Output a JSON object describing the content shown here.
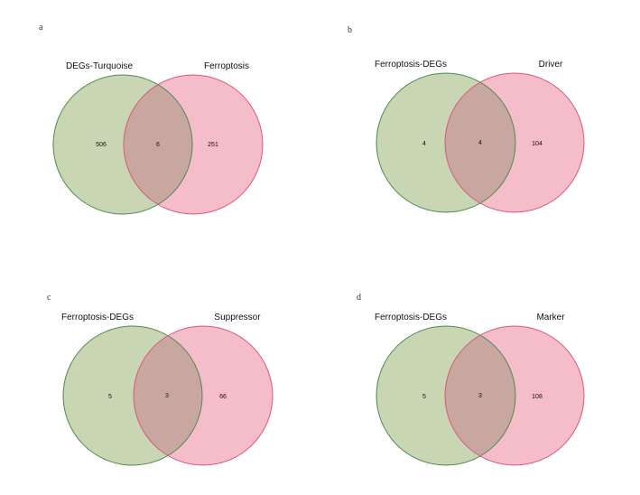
{
  "colors": {
    "left_fill": "#c9d6b4",
    "left_stroke": "#4d8a4d",
    "right_fill": "#f5bcc9",
    "right_stroke": "#d8587a",
    "overlap_fill": "#c8a7a1"
  },
  "panels": [
    {
      "letter": "a",
      "left_label": "DEGs-Turquoise",
      "right_label": "Ferroptosis",
      "left_only": "506",
      "overlap": "6",
      "right_only": "251"
    },
    {
      "letter": "b",
      "left_label": "Ferroptosis-DEGs",
      "right_label": "Driver",
      "left_only": "4",
      "overlap": "4",
      "right_only": "104"
    },
    {
      "letter": "c",
      "left_label": "Ferroptosis-DEGs",
      "right_label": "Suppressor",
      "left_only": "5",
      "overlap": "3",
      "right_only": "66"
    },
    {
      "letter": "d",
      "left_label": "Ferroptosis-DEGs",
      "right_label": "Marker",
      "left_only": "5",
      "overlap": "3",
      "right_only": "108"
    }
  ]
}
